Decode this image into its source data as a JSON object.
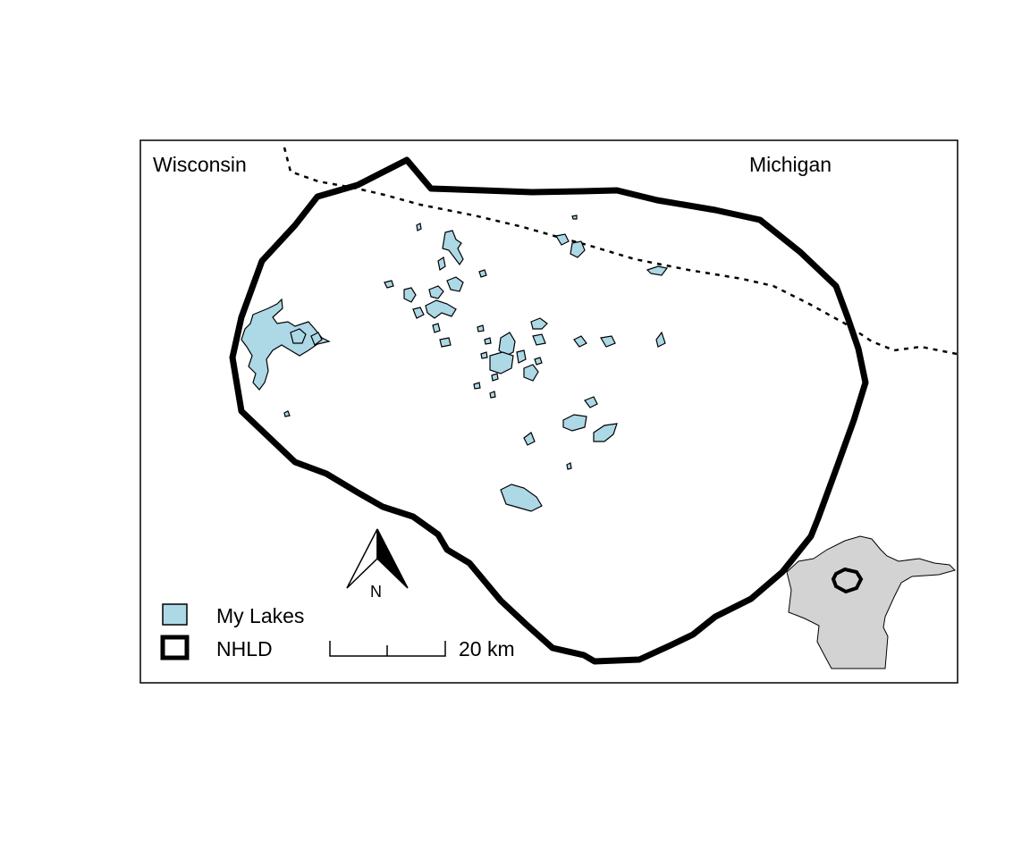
{
  "labels": {
    "wisconsin": "Wisconsin",
    "michigan": "Michigan"
  },
  "legend": {
    "items": [
      {
        "label": "My Lakes",
        "fill": "#ADD8E6",
        "stroke": "#000000"
      },
      {
        "label": "NHLD",
        "fill": "#FFFFFF",
        "stroke": "#000000"
      }
    ]
  },
  "scale_bar": {
    "label": "20 km"
  },
  "north_arrow": {
    "label": "N"
  },
  "colors": {
    "lake_fill": "#ADD8E6",
    "inset_state_fill": "#D3D3D3",
    "boundary_stroke": "#000000",
    "frame_stroke": "#000000"
  },
  "icons": {
    "north_arrow": "north-arrow-icon",
    "lake_swatch": "lake-swatch-icon",
    "nhld_swatch": "nhld-swatch-icon"
  }
}
